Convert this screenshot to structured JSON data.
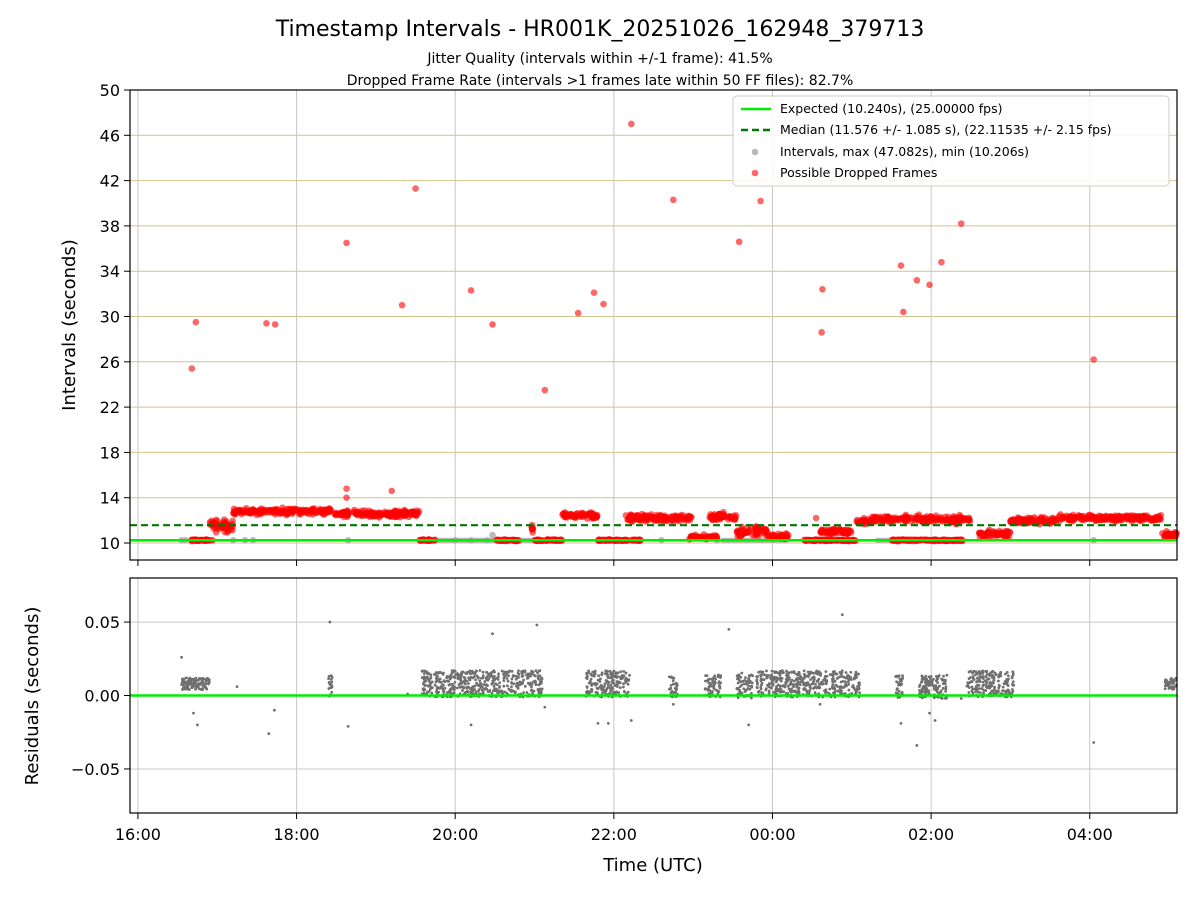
{
  "colors": {
    "expected": "#00ee00",
    "median": "#007700",
    "intervals": "#a9a9a9",
    "dropped": "#ff0000",
    "residuals": "#707070",
    "hgrid_top": "#d4c48a",
    "vgrid": "#c8c8c8"
  },
  "chart_data": [
    {
      "type": "scatter",
      "title": "Timestamp Intervals - HR001K_20251026_162948_379713",
      "subtitle_1": "Jitter Quality (intervals within +/-1 frame): 41.5%",
      "subtitle_2": "Dropped Frame Rate (intervals >1 frames late within 50 FF files): 82.7%",
      "ylabel": "Intervals (seconds)",
      "ylim": [
        8.5,
        50
      ],
      "yticks": [
        "10",
        "14",
        "18",
        "22",
        "26",
        "30",
        "34",
        "38",
        "42",
        "46",
        "50"
      ],
      "ytick_values": [
        10,
        14,
        18,
        22,
        26,
        30,
        34,
        38,
        42,
        46,
        50
      ],
      "x_unit": "hours since 16:00 UTC",
      "xlim": [
        -0.1,
        13.1
      ],
      "expected_interval": 10.24,
      "median_interval": 11.576,
      "legend": {
        "position": "top-right",
        "entries": [
          "Expected (10.240s), (25.00000 fps)",
          "Median (11.576 +/- 1.085 s), (22.11535 +/- 2.15 fps)",
          "Intervals, max (47.082s), min (10.206s)",
          "Possible Dropped Frames"
        ]
      },
      "dropped_outliers": [
        [
          0.68,
          25.4
        ],
        [
          0.73,
          29.5
        ],
        [
          1.62,
          29.4
        ],
        [
          1.73,
          29.3
        ],
        [
          2.63,
          36.5
        ],
        [
          2.63,
          14.8
        ],
        [
          2.63,
          14.0
        ],
        [
          3.33,
          31.0
        ],
        [
          3.5,
          41.3
        ],
        [
          3.2,
          14.6
        ],
        [
          4.2,
          32.3
        ],
        [
          4.47,
          29.3
        ],
        [
          5.13,
          23.5
        ],
        [
          5.55,
          30.3
        ],
        [
          5.75,
          32.1
        ],
        [
          5.87,
          31.1
        ],
        [
          6.22,
          47.0
        ],
        [
          6.75,
          40.3
        ],
        [
          7.58,
          36.6
        ],
        [
          7.85,
          40.2
        ],
        [
          8.55,
          12.2
        ],
        [
          8.62,
          28.6
        ],
        [
          8.63,
          32.4
        ],
        [
          9.62,
          34.5
        ],
        [
          9.65,
          30.4
        ],
        [
          9.82,
          33.2
        ],
        [
          9.98,
          32.8
        ],
        [
          10.13,
          34.8
        ],
        [
          10.38,
          38.2
        ],
        [
          12.05,
          26.2
        ]
      ],
      "dropped_clusters": [
        {
          "x_start": 0.65,
          "x_end": 0.95,
          "level": 10.24,
          "spread": 0.1
        },
        {
          "x_start": 0.9,
          "x_end": 1.2,
          "level": 11.5,
          "spread": 0.8
        },
        {
          "x_start": 1.2,
          "x_end": 2.45,
          "level": 12.8,
          "spread": 0.4
        },
        {
          "x_start": 2.45,
          "x_end": 3.55,
          "level": 12.6,
          "spread": 0.4
        },
        {
          "x_start": 3.55,
          "x_end": 3.75,
          "level": 10.24,
          "spread": 0.1
        },
        {
          "x_start": 4.5,
          "x_end": 4.8,
          "level": 10.24,
          "spread": 0.1
        },
        {
          "x_start": 4.95,
          "x_end": 5.0,
          "level": 11.3,
          "spread": 0.5
        },
        {
          "x_start": 5.0,
          "x_end": 5.35,
          "level": 10.24,
          "spread": 0.1
        },
        {
          "x_start": 5.35,
          "x_end": 5.8,
          "level": 12.4,
          "spread": 0.4
        },
        {
          "x_start": 5.8,
          "x_end": 6.35,
          "level": 10.24,
          "spread": 0.1
        },
        {
          "x_start": 6.15,
          "x_end": 7.0,
          "level": 12.2,
          "spread": 0.5
        },
        {
          "x_start": 6.95,
          "x_end": 7.3,
          "level": 10.5,
          "spread": 0.3
        },
        {
          "x_start": 7.2,
          "x_end": 7.55,
          "level": 12.3,
          "spread": 0.5
        },
        {
          "x_start": 7.55,
          "x_end": 7.95,
          "level": 11.0,
          "spread": 0.6
        },
        {
          "x_start": 7.95,
          "x_end": 8.2,
          "level": 10.6,
          "spread": 0.4
        },
        {
          "x_start": 8.4,
          "x_end": 9.05,
          "level": 10.24,
          "spread": 0.1
        },
        {
          "x_start": 8.6,
          "x_end": 9.0,
          "level": 11.0,
          "spread": 0.4
        },
        {
          "x_start": 9.05,
          "x_end": 9.25,
          "level": 11.9,
          "spread": 0.4
        },
        {
          "x_start": 9.25,
          "x_end": 10.5,
          "level": 12.1,
          "spread": 0.5
        },
        {
          "x_start": 9.5,
          "x_end": 10.4,
          "level": 10.24,
          "spread": 0.1
        },
        {
          "x_start": 10.6,
          "x_end": 11.0,
          "level": 10.8,
          "spread": 0.5
        },
        {
          "x_start": 11.0,
          "x_end": 11.6,
          "level": 12.0,
          "spread": 0.4
        },
        {
          "x_start": 11.6,
          "x_end": 12.9,
          "level": 12.2,
          "spread": 0.4
        },
        {
          "x_start": 12.9,
          "x_end": 13.1,
          "level": 10.7,
          "spread": 0.4
        }
      ],
      "grey_intervals": [
        [
          0.55,
          10.24
        ],
        [
          0.6,
          10.24
        ],
        [
          1.2,
          10.24
        ],
        [
          1.35,
          10.24
        ],
        [
          1.45,
          10.24
        ],
        [
          2.65,
          10.24
        ],
        [
          4.0,
          10.24
        ],
        [
          4.2,
          10.24
        ],
        [
          4.4,
          10.24
        ],
        [
          4.8,
          10.24
        ],
        [
          6.6,
          10.24
        ],
        [
          7.3,
          10.24
        ],
        [
          8.8,
          10.24
        ],
        [
          9.55,
          10.24
        ],
        [
          12.05,
          10.24
        ],
        [
          4.47,
          10.7
        ]
      ],
      "interval_bar_segments": [
        [
          3.7,
          5.1
        ],
        [
          7.35,
          8.2
        ],
        [
          9.3,
          9.55
        ]
      ]
    },
    {
      "type": "scatter",
      "ylabel": "Residuals (seconds)",
      "xlabel": "Time (UTC)",
      "ylim": [
        -0.08,
        0.08
      ],
      "yticks": [
        "−0.05",
        "0.00",
        "0.05"
      ],
      "ytick_values": [
        -0.05,
        0.0,
        0.05
      ],
      "xlim": [
        -0.1,
        13.1
      ],
      "xticks": [
        "16:00",
        "18:00",
        "20:00",
        "22:00",
        "00:00",
        "02:00",
        "04:00"
      ],
      "xtick_values": [
        0,
        2,
        4,
        6,
        8,
        10,
        12
      ],
      "residual_clusters": [
        {
          "x_start": 0.55,
          "x_end": 0.9,
          "center": 0.008,
          "spread": 0.004
        },
        {
          "x_start": 2.4,
          "x_end": 2.45,
          "center": 0.006,
          "spread": 0.008
        },
        {
          "x_start": 3.58,
          "x_end": 5.1,
          "center": 0.008,
          "spread": 0.009
        },
        {
          "x_start": 5.65,
          "x_end": 6.2,
          "center": 0.008,
          "spread": 0.009
        },
        {
          "x_start": 6.7,
          "x_end": 6.8,
          "center": 0.006,
          "spread": 0.008
        },
        {
          "x_start": 7.15,
          "x_end": 7.35,
          "center": 0.007,
          "spread": 0.008
        },
        {
          "x_start": 7.55,
          "x_end": 7.75,
          "center": 0.007,
          "spread": 0.009
        },
        {
          "x_start": 7.8,
          "x_end": 9.1,
          "center": 0.008,
          "spread": 0.009
        },
        {
          "x_start": 9.55,
          "x_end": 9.65,
          "center": 0.006,
          "spread": 0.008
        },
        {
          "x_start": 9.85,
          "x_end": 10.2,
          "center": 0.006,
          "spread": 0.008
        },
        {
          "x_start": 10.45,
          "x_end": 11.05,
          "center": 0.008,
          "spread": 0.009
        },
        {
          "x_start": 12.95,
          "x_end": 13.1,
          "center": 0.008,
          "spread": 0.004
        }
      ],
      "residual_outliers": [
        [
          0.55,
          0.026
        ],
        [
          0.7,
          -0.012
        ],
        [
          0.75,
          -0.02
        ],
        [
          1.25,
          0.006
        ],
        [
          1.65,
          -0.026
        ],
        [
          1.72,
          -0.01
        ],
        [
          2.42,
          0.05
        ],
        [
          2.65,
          -0.021
        ],
        [
          4.2,
          -0.02
        ],
        [
          4.47,
          0.042
        ],
        [
          5.03,
          0.048
        ],
        [
          5.13,
          -0.008
        ],
        [
          5.8,
          -0.019
        ],
        [
          5.93,
          -0.019
        ],
        [
          6.22,
          -0.017
        ],
        [
          6.75,
          -0.006
        ],
        [
          7.45,
          0.045
        ],
        [
          7.7,
          -0.02
        ],
        [
          8.6,
          -0.006
        ],
        [
          8.88,
          0.055
        ],
        [
          9.62,
          -0.019
        ],
        [
          9.82,
          -0.034
        ],
        [
          9.98,
          -0.012
        ],
        [
          10.05,
          -0.017
        ],
        [
          10.38,
          -0.002
        ],
        [
          12.05,
          -0.032
        ],
        [
          3.4,
          0.001
        ]
      ]
    }
  ]
}
